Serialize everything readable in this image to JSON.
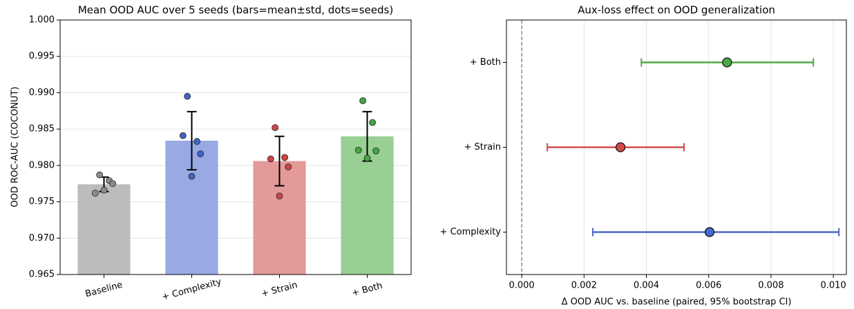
{
  "chart_data": [
    {
      "type": "bar",
      "title": "Mean OOD AUC over 5 seeds (bars=mean±std, dots=seeds)",
      "y_label": "OOD ROC-AUC (COCONUT)",
      "categories": [
        "Baseline",
        "+ Complexity",
        "+ Strain",
        "+ Both"
      ],
      "values": [
        0.9774,
        0.9834,
        0.9806,
        0.984
      ],
      "errors": [
        0.001,
        0.004,
        0.0034,
        0.0034
      ],
      "seeds": [
        [
          0.9787,
          0.9779,
          0.9762,
          0.9775,
          0.9766
        ],
        [
          0.9895,
          0.9833,
          0.9841,
          0.9816,
          0.9785
        ],
        [
          0.9852,
          0.9811,
          0.9809,
          0.9798,
          0.9758
        ],
        [
          0.9889,
          0.9859,
          0.9821,
          0.982,
          0.981
        ]
      ],
      "colors": [
        "#bcbcbc",
        "#98a9e3",
        "#e39a99",
        "#98cf93"
      ],
      "seed_colors": [
        "#8c8c8c",
        "#4262c6",
        "#cf4444",
        "#44a644"
      ],
      "ylim": [
        0.965,
        1.0
      ],
      "yticks": [
        0.965,
        {
          "value": 0.97,
          "label": "0.970"
        },
        0.975,
        {
          "value": 0.98,
          "label": "0.980"
        },
        0.985,
        {
          "value": 0.99,
          "label": "0.990"
        },
        0.995,
        {
          "value": 1,
          "label": "1.000"
        }
      ],
      "grid": true
    },
    {
      "type": "forest",
      "title": "Aux-loss effect on OOD generalization",
      "x_label": "Δ OOD AUC vs. baseline (paired, 95% bootstrap CI)",
      "categories": [
        "+ Both",
        "+ Strain",
        "+ Complexity"
      ],
      "values": [
        0.00659,
        0.00317,
        0.00603
      ],
      "ci_low": [
        0.00384,
        0.00082,
        0.00228
      ],
      "ci_high": [
        0.00936,
        0.00521,
        0.01018
      ],
      "colors": [
        "#4aaa46",
        "#d24b4b",
        "#4a67cb"
      ],
      "reference": 0,
      "xlim": [
        -0.00049,
        0.01042
      ],
      "xticks": [
        {
          "value": 0,
          "label": "0.000"
        },
        0.002,
        0.004,
        0.006,
        0.008,
        {
          "value": 0.01,
          "label": "0.010"
        }
      ],
      "grid": true
    }
  ]
}
